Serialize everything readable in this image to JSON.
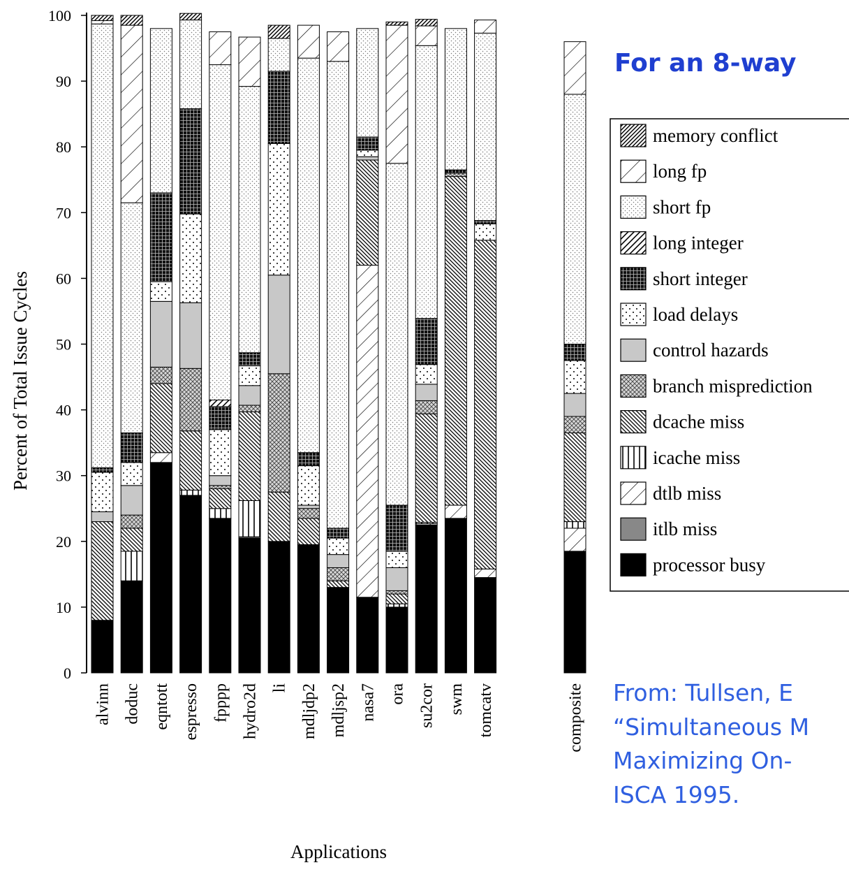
{
  "slide": {
    "heading": "For an 8-way",
    "citation_lines": [
      "From: Tullsen, E",
      "“Simultaneous M",
      "Maximizing On-",
      "ISCA 1995."
    ]
  },
  "chart_data": {
    "type": "bar",
    "stacked": true,
    "xlabel": "Applications",
    "ylabel": "Percent of Total Issue Cycles",
    "ylim": [
      0,
      100
    ],
    "yticks": [
      0,
      10,
      20,
      30,
      40,
      50,
      60,
      70,
      80,
      90,
      100
    ],
    "grid": false,
    "legend_position": "right",
    "categories": [
      "alvinn",
      "doduc",
      "eqntott",
      "espresso",
      "fpppp",
      "hydro2d",
      "li",
      "mdljdp2",
      "mdljsp2",
      "nasa7",
      "ora",
      "su2cor",
      "swm",
      "tomcatv",
      "composite"
    ],
    "series": [
      {
        "name": "processor busy",
        "pattern": "solid-black",
        "values": [
          8,
          14,
          32,
          27,
          23.5,
          20.5,
          20,
          19.5,
          13,
          11.5,
          10,
          22.5,
          23.5,
          14.5,
          18.5
        ]
      },
      {
        "name": "itlb miss",
        "pattern": "solid-gray",
        "values": [
          0,
          0,
          0,
          0,
          0,
          0.2,
          0,
          0,
          0,
          0,
          0,
          0,
          0,
          0,
          0
        ]
      },
      {
        "name": "dtlb miss",
        "pattern": "diagonal-light",
        "values": [
          0,
          0,
          1.5,
          0,
          0,
          0,
          0,
          0,
          0,
          50.5,
          0,
          0.2,
          2,
          1.3,
          3.5
        ]
      },
      {
        "name": "icache miss",
        "pattern": "vertical-lines",
        "values": [
          0,
          4.5,
          0,
          0.8,
          1.5,
          5.5,
          0,
          0,
          0,
          0,
          0.5,
          0.2,
          0,
          0,
          1
        ]
      },
      {
        "name": "dcache miss",
        "pattern": "diagonal-dense",
        "values": [
          15,
          3.5,
          10.5,
          9,
          3,
          13.5,
          7.5,
          4,
          1,
          16,
          1.5,
          16.5,
          50,
          50,
          13.5
        ]
      },
      {
        "name": "branch misprediction",
        "pattern": "crosshatch",
        "values": [
          0,
          2,
          2.5,
          9.5,
          0.5,
          1,
          18,
          1.5,
          2,
          0,
          0.5,
          2,
          0.5,
          0,
          2.5
        ]
      },
      {
        "name": "control hazards",
        "pattern": "light-gray",
        "values": [
          1.5,
          4.5,
          10,
          10,
          1.5,
          3,
          15,
          0.5,
          2,
          0.5,
          3.5,
          2.5,
          0,
          0,
          3.5
        ]
      },
      {
        "name": "load delays",
        "pattern": "dots",
        "values": [
          6,
          3.5,
          3,
          13.5,
          7,
          3,
          20,
          6,
          2.5,
          1,
          2.5,
          3,
          0,
          2.5,
          5
        ]
      },
      {
        "name": "short integer",
        "pattern": "grid-dark",
        "values": [
          0.7,
          4.5,
          13.5,
          16,
          3.5,
          2,
          11,
          2,
          1.5,
          2,
          7,
          7,
          0.5,
          0.5,
          2.5
        ]
      },
      {
        "name": "long integer",
        "pattern": "diagonal-thick",
        "values": [
          0,
          0,
          0,
          0,
          1,
          0,
          0,
          0,
          0,
          0,
          0,
          0,
          0,
          0,
          0
        ]
      },
      {
        "name": "short fp",
        "pattern": "dotted-grid",
        "values": [
          67.5,
          35,
          25,
          13.5,
          51,
          40.5,
          5,
          60,
          71,
          16.5,
          52,
          41.5,
          21.5,
          28.5,
          38
        ]
      },
      {
        "name": "long fp",
        "pattern": "diagonal-wide",
        "values": [
          0.5,
          27,
          0,
          0,
          5,
          7.5,
          0,
          5,
          4.5,
          0,
          21,
          3,
          0,
          2,
          8
        ]
      },
      {
        "name": "memory conflict",
        "pattern": "diagonal-black",
        "values": [
          0.8,
          1.5,
          0,
          1,
          0,
          0,
          2,
          0,
          0,
          0,
          0.5,
          1,
          0,
          0,
          0
        ]
      }
    ]
  }
}
